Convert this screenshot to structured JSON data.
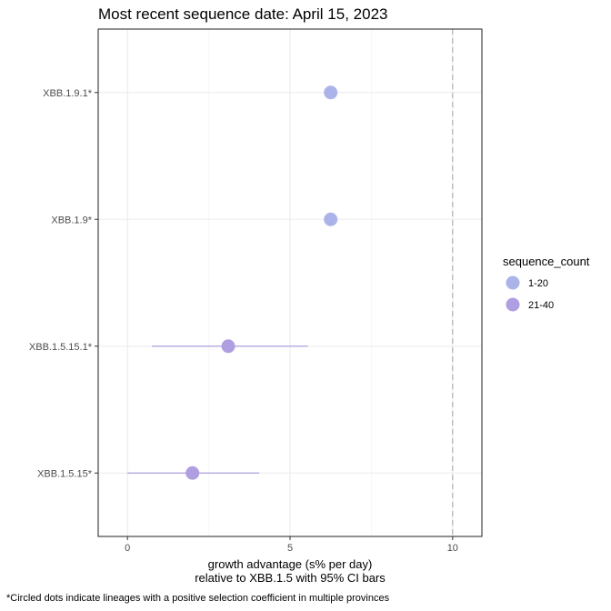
{
  "chart_data": {
    "type": "scatter",
    "title": "Most recent sequence date: April 15, 2023",
    "xlabel_line1": "growth advantage (s% per day)",
    "xlabel_line2": "relative to  XBB.1.5  with 95% CI bars",
    "ylabel": "",
    "xlim": [
      -0.9,
      10.9
    ],
    "x_ticks": [
      0,
      5,
      10
    ],
    "x_tick_labels": [
      "0",
      "5",
      "10"
    ],
    "reference_line_x": 10,
    "grid": true,
    "legend": {
      "title": "sequence_count",
      "position": "right",
      "items": [
        {
          "label": "1-20",
          "color": "#aab4e8"
        },
        {
          "label": "21-40",
          "color": "#b09fe0"
        }
      ]
    },
    "points": [
      {
        "lineage": "XBB.1.9.1*",
        "x": 6.25,
        "ci_low": null,
        "ci_high": null,
        "sequence_count": "1-20"
      },
      {
        "lineage": "XBB.1.9*",
        "x": 6.25,
        "ci_low": null,
        "ci_high": null,
        "sequence_count": "1-20"
      },
      {
        "lineage": "XBB.1.5.15.1*",
        "x": 3.1,
        "ci_low": 0.75,
        "ci_high": 5.55,
        "sequence_count": "21-40"
      },
      {
        "lineage": "XBB.1.5.15*",
        "x": 2.0,
        "ci_low": 0.0,
        "ci_high": 4.05,
        "sequence_count": "21-40"
      }
    ],
    "caption": "*Circled dots indicate lineages with a positive selection coefficient in multiple provinces"
  }
}
